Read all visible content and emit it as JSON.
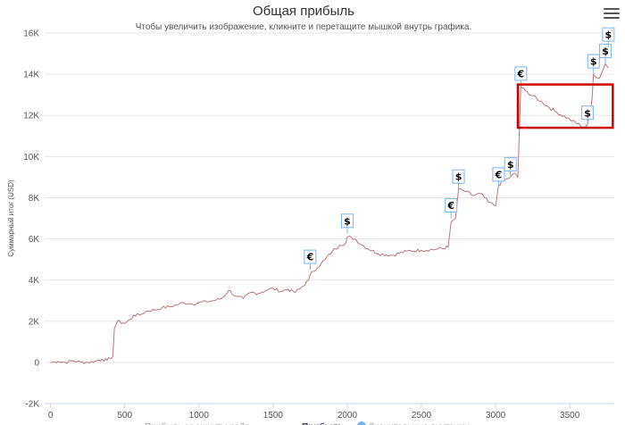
{
  "chart_data": {
    "type": "line",
    "title": "Общая прибыль",
    "subtitle": "Чтобы увеличить изображение, кликните и перетащите мышкой внутрь графика.",
    "ylabel": "Суммарный итог (USD)",
    "xlabel": "",
    "xlim": [
      -40,
      3800
    ],
    "ylim": [
      -2000,
      16000
    ],
    "x_ticks": [
      "0",
      "500",
      "1000",
      "1500",
      "2000",
      "2500",
      "3000",
      "3500"
    ],
    "y_ticks": [
      "-2K",
      "0",
      "2K",
      "4K",
      "6K",
      "8K",
      "10K",
      "12K",
      "14K",
      "16K"
    ],
    "grid": "horizontal",
    "line_color": "#b87777",
    "series": [
      {
        "name": "Прибыль",
        "x": [
          0,
          50,
          100,
          150,
          200,
          250,
          300,
          350,
          380,
          400,
          420,
          430,
          450,
          500,
          540,
          560,
          600,
          650,
          700,
          750,
          800,
          850,
          900,
          950,
          1000,
          1050,
          1100,
          1150,
          1180,
          1200,
          1250,
          1300,
          1350,
          1400,
          1450,
          1500,
          1550,
          1600,
          1650,
          1700,
          1740,
          1760,
          1800,
          1850,
          1900,
          1950,
          1990,
          2000,
          2050,
          2100,
          2200,
          2300,
          2400,
          2500,
          2600,
          2680,
          2700,
          2730,
          2750,
          2800,
          2850,
          2900,
          2950,
          3000,
          3020,
          3050,
          3100,
          3130,
          3150,
          3170,
          3200,
          3300,
          3400,
          3500,
          3600,
          3620,
          3640,
          3650,
          3660,
          3700,
          3740,
          3760
        ],
        "values": [
          0,
          50,
          0,
          80,
          20,
          0,
          60,
          150,
          100,
          200,
          300,
          1650,
          2000,
          1900,
          2100,
          2300,
          2300,
          2500,
          2550,
          2650,
          2700,
          2800,
          2900,
          2850,
          2900,
          2950,
          3000,
          3100,
          3300,
          3500,
          3200,
          3100,
          3400,
          3350,
          3500,
          3600,
          3450,
          3550,
          3400,
          3700,
          4000,
          4400,
          4600,
          5000,
          5400,
          5700,
          5800,
          6100,
          6000,
          5700,
          5300,
          5200,
          5400,
          5450,
          5500,
          5600,
          6800,
          7000,
          8400,
          8300,
          8100,
          8200,
          7800,
          7600,
          8600,
          8800,
          9000,
          9200,
          9000,
          13400,
          13200,
          12700,
          12200,
          11800,
          11400,
          11600,
          12200,
          12800,
          14000,
          13800,
          14500,
          14300
        ]
      }
    ],
    "flags": [
      {
        "x": 1750,
        "y": 4500,
        "label": "€"
      },
      {
        "x": 2000,
        "y": 6250,
        "label": "$"
      },
      {
        "x": 2700,
        "y": 7000,
        "label": "€"
      },
      {
        "x": 2750,
        "y": 8400,
        "label": "$"
      },
      {
        "x": 3020,
        "y": 8500,
        "label": "€"
      },
      {
        "x": 3100,
        "y": 9000,
        "label": "$"
      },
      {
        "x": 3170,
        "y": 13400,
        "label": "€"
      },
      {
        "x": 3620,
        "y": 11500,
        "label": "$"
      },
      {
        "x": 3660,
        "y": 14000,
        "label": "$"
      },
      {
        "x": 3740,
        "y": 14500,
        "label": "$"
      },
      {
        "x": 3760,
        "y": 15300,
        "label": "$"
      }
    ],
    "highlight_box": {
      "x0": 3150,
      "x1": 3790,
      "y0": 11400,
      "y1": 13500,
      "color": "#cc0000"
    },
    "legend": [
      {
        "label": "Прибыль за минуты рейт...",
        "symbol_color": "#cccccc",
        "style": "faded"
      },
      {
        "label": "Прибыль",
        "symbol_color": "#b87777",
        "style": "bold"
      },
      {
        "label": "Значительные внутримн...",
        "symbol_color": "#7cb5ec",
        "style": "faded"
      }
    ]
  }
}
